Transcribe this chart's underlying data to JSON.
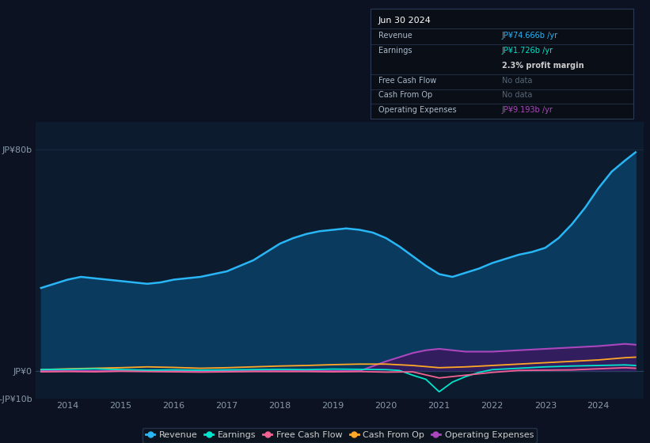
{
  "bg_color": "#0c1221",
  "plot_bg_color": "#0d1b2e",
  "outer_bg_color": "#0c1221",
  "grid_color": "#1a2d45",
  "title_box_bg": "#0a0e17",
  "title_box_border": "#2a3a55",
  "ylabel_left": "JP¥80b",
  "ylabel_zero": "JP¥0",
  "ylabel_neg": "-JP¥10b",
  "ylim": [
    -10,
    90
  ],
  "ytick_vals": [
    -10,
    0,
    80
  ],
  "xticks": [
    2014,
    2015,
    2016,
    2017,
    2018,
    2019,
    2020,
    2021,
    2022,
    2023,
    2024
  ],
  "legend": [
    {
      "label": "Revenue",
      "color": "#29b6f6"
    },
    {
      "label": "Earnings",
      "color": "#00e5cc"
    },
    {
      "label": "Free Cash Flow",
      "color": "#f06292"
    },
    {
      "label": "Cash From Op",
      "color": "#ffa726"
    },
    {
      "label": "Operating Expenses",
      "color": "#ab47bc"
    }
  ],
  "revenue_x": [
    2013.5,
    2013.75,
    2014.0,
    2014.25,
    2014.5,
    2014.75,
    2015.0,
    2015.25,
    2015.5,
    2015.75,
    2016.0,
    2016.25,
    2016.5,
    2016.75,
    2017.0,
    2017.25,
    2017.5,
    2017.75,
    2018.0,
    2018.25,
    2018.5,
    2018.75,
    2019.0,
    2019.25,
    2019.5,
    2019.75,
    2020.0,
    2020.25,
    2020.5,
    2020.75,
    2021.0,
    2021.25,
    2021.5,
    2021.75,
    2022.0,
    2022.25,
    2022.5,
    2022.75,
    2023.0,
    2023.25,
    2023.5,
    2023.75,
    2024.0,
    2024.25,
    2024.5,
    2024.7
  ],
  "revenue_y": [
    30,
    31.5,
    33,
    34,
    33.5,
    33,
    32.5,
    32,
    31.5,
    32,
    33,
    33.5,
    34,
    35,
    36,
    38,
    40,
    43,
    46,
    48,
    49.5,
    50.5,
    51,
    51.5,
    51,
    50,
    48,
    45,
    41.5,
    38,
    35,
    34,
    35.5,
    37,
    39,
    40.5,
    42,
    43,
    44.5,
    48,
    53,
    59,
    66,
    72,
    76,
    79
  ],
  "earnings_x": [
    2013.5,
    2014.0,
    2014.5,
    2015.0,
    2015.5,
    2016.0,
    2016.5,
    2017.0,
    2017.5,
    2018.0,
    2018.5,
    2019.0,
    2019.5,
    2020.0,
    2020.25,
    2020.5,
    2020.75,
    2021.0,
    2021.25,
    2021.5,
    2021.75,
    2022.0,
    2022.5,
    2023.0,
    2023.5,
    2024.0,
    2024.5,
    2024.7
  ],
  "earnings_y": [
    0.5,
    0.6,
    0.8,
    0.5,
    0.3,
    0.4,
    0.3,
    0.4,
    0.5,
    0.6,
    0.5,
    0.7,
    0.6,
    0.5,
    0.2,
    -1.5,
    -3.0,
    -7.5,
    -4.0,
    -2.0,
    -0.5,
    0.5,
    1.0,
    1.5,
    1.8,
    2.0,
    2.2,
    2.0
  ],
  "fcf_x": [
    2013.5,
    2014.0,
    2014.5,
    2015.0,
    2015.5,
    2016.0,
    2016.5,
    2017.0,
    2017.5,
    2018.0,
    2018.5,
    2019.0,
    2019.5,
    2020.0,
    2020.5,
    2021.0,
    2021.5,
    2022.0,
    2022.5,
    2023.0,
    2023.5,
    2024.0,
    2024.5,
    2024.7
  ],
  "fcf_y": [
    -0.3,
    -0.2,
    -0.3,
    -0.1,
    -0.2,
    -0.3,
    -0.4,
    -0.3,
    -0.2,
    -0.2,
    -0.2,
    -0.3,
    -0.2,
    -0.4,
    -0.3,
    -2.5,
    -1.5,
    -0.5,
    0.2,
    0.3,
    0.4,
    0.8,
    1.2,
    1.0
  ],
  "cashop_x": [
    2013.5,
    2014.0,
    2014.5,
    2015.0,
    2015.5,
    2016.0,
    2016.5,
    2017.0,
    2017.5,
    2018.0,
    2018.5,
    2019.0,
    2019.5,
    2020.0,
    2020.5,
    2021.0,
    2021.5,
    2022.0,
    2022.5,
    2023.0,
    2023.5,
    2024.0,
    2024.5,
    2024.7
  ],
  "cashop_y": [
    0.5,
    0.8,
    1.0,
    1.2,
    1.5,
    1.3,
    1.0,
    1.2,
    1.5,
    1.8,
    2.0,
    2.3,
    2.5,
    2.5,
    2.0,
    1.2,
    1.5,
    2.0,
    2.5,
    3.0,
    3.5,
    4.0,
    4.8,
    5.0
  ],
  "opex_x": [
    2013.5,
    2014.0,
    2015.0,
    2016.0,
    2017.0,
    2018.0,
    2019.0,
    2019.5,
    2020.0,
    2020.25,
    2020.5,
    2020.75,
    2021.0,
    2021.25,
    2021.5,
    2022.0,
    2022.5,
    2023.0,
    2023.5,
    2024.0,
    2024.5,
    2024.7
  ],
  "opex_y": [
    0.0,
    0.0,
    0.0,
    0.0,
    0.0,
    0.0,
    0.0,
    0.0,
    3.5,
    5.0,
    6.5,
    7.5,
    8.0,
    7.5,
    7.0,
    7.0,
    7.5,
    8.0,
    8.5,
    9.0,
    9.8,
    9.5
  ]
}
